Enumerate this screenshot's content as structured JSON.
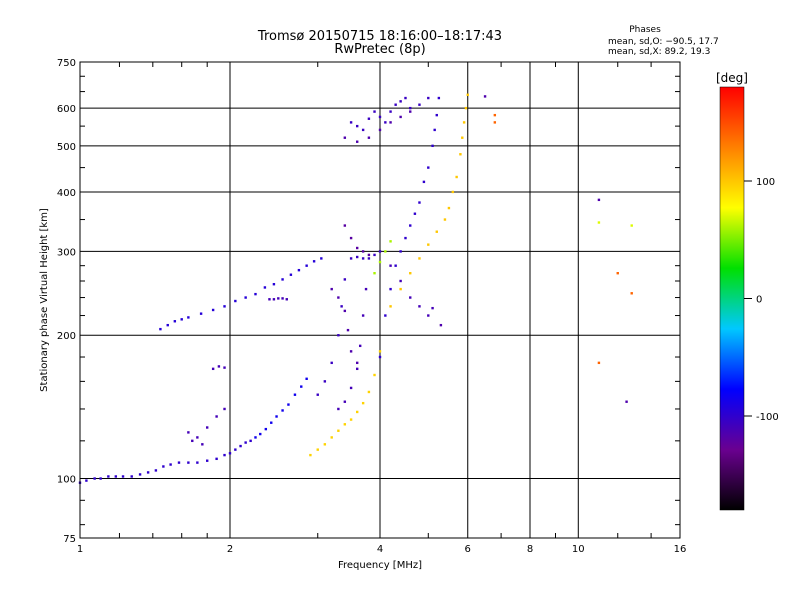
{
  "chart_data": {
    "type": "scatter",
    "title": "Tromsø 20150715 18:16:00–18:17:43",
    "subtitle": "RwPretec (8p)",
    "xlabel": "Frequency [MHz]",
    "ylabel": "Stationary phase Virtual Height [km]",
    "x_scale": "log",
    "y_scale": "log",
    "xlim": [
      1,
      16
    ],
    "ylim": [
      75,
      750
    ],
    "grid": true,
    "x_ticks": [
      1,
      2,
      4,
      6,
      8,
      10,
      16
    ],
    "y_ticks": [
      75,
      100,
      200,
      300,
      400,
      500,
      600,
      750
    ],
    "phases_box": {
      "title": "Phases",
      "line_o": "mean, sd,O: −90.5, 17.7",
      "line_x": "mean, sd,X:  89.2, 19.3"
    },
    "colorbar": {
      "label": "[deg]",
      "range": [
        -180,
        180
      ],
      "ticks": [
        100,
        0,
        -100
      ],
      "colors": [
        "#000000",
        "#6a0090",
        "#0000ff",
        "#00c8ff",
        "#00e000",
        "#ffff00",
        "#ff8000",
        "#ff0000"
      ]
    },
    "series": [
      {
        "phase": -100,
        "points": [
          [
            1.0,
            98
          ],
          [
            1.03,
            99
          ],
          [
            1.07,
            100
          ],
          [
            1.1,
            100
          ],
          [
            1.14,
            101
          ],
          [
            1.18,
            101
          ],
          [
            1.22,
            101
          ],
          [
            1.27,
            101
          ],
          [
            1.32,
            102
          ],
          [
            1.37,
            103
          ],
          [
            1.42,
            104
          ],
          [
            1.47,
            106
          ],
          [
            1.52,
            107
          ],
          [
            1.58,
            108
          ],
          [
            1.65,
            108
          ],
          [
            1.72,
            108
          ],
          [
            1.8,
            109
          ],
          [
            1.88,
            110
          ],
          [
            1.95,
            112
          ],
          [
            2.0,
            113
          ],
          [
            2.05,
            115
          ],
          [
            2.1,
            117
          ],
          [
            2.15,
            119
          ],
          [
            2.2,
            120
          ]
        ]
      },
      {
        "phase": -85,
        "points": [
          [
            2.25,
            122
          ],
          [
            2.3,
            124
          ],
          [
            2.36,
            127
          ],
          [
            2.42,
            131
          ],
          [
            2.48,
            135
          ],
          [
            2.55,
            139
          ],
          [
            2.62,
            143
          ],
          [
            2.7,
            150
          ],
          [
            2.78,
            156
          ],
          [
            2.85,
            162
          ]
        ]
      },
      {
        "phase": -95,
        "points": [
          [
            1.45,
            206
          ],
          [
            1.5,
            210
          ],
          [
            1.55,
            214
          ],
          [
            1.6,
            216
          ],
          [
            1.65,
            218
          ],
          [
            1.75,
            222
          ],
          [
            1.85,
            226
          ],
          [
            1.95,
            230
          ],
          [
            2.05,
            236
          ],
          [
            2.15,
            240
          ],
          [
            2.25,
            244
          ],
          [
            2.35,
            252
          ],
          [
            2.45,
            256
          ],
          [
            2.55,
            262
          ],
          [
            2.65,
            268
          ],
          [
            2.75,
            274
          ],
          [
            2.85,
            280
          ],
          [
            2.95,
            286
          ],
          [
            3.05,
            290
          ]
        ]
      },
      {
        "phase": -110,
        "points": [
          [
            2.4,
            238
          ],
          [
            2.45,
            238
          ],
          [
            2.5,
            239
          ],
          [
            2.55,
            239
          ],
          [
            2.6,
            238
          ]
        ]
      },
      {
        "phase": -110,
        "points": [
          [
            1.85,
            170
          ],
          [
            1.9,
            172
          ],
          [
            1.95,
            171
          ]
        ]
      },
      {
        "phase": -110,
        "points": [
          [
            1.65,
            125
          ],
          [
            1.72,
            122
          ],
          [
            1.8,
            128
          ],
          [
            1.88,
            135
          ],
          [
            1.95,
            140
          ],
          [
            1.68,
            120
          ],
          [
            1.76,
            118
          ]
        ]
      },
      {
        "phase": -105,
        "points": [
          [
            3.0,
            150
          ],
          [
            3.1,
            160
          ],
          [
            3.2,
            175
          ],
          [
            3.3,
            200
          ],
          [
            3.35,
            230
          ],
          [
            3.4,
            262
          ],
          [
            3.5,
            290
          ],
          [
            3.6,
            292
          ],
          [
            3.7,
            290
          ],
          [
            3.8,
            290
          ],
          [
            3.9,
            295
          ],
          [
            4.0,
            300
          ]
        ]
      },
      {
        "phase": -110,
        "points": [
          [
            3.3,
            140
          ],
          [
            3.4,
            145
          ],
          [
            3.5,
            155
          ],
          [
            3.6,
            170
          ],
          [
            3.65,
            190
          ],
          [
            3.7,
            220
          ],
          [
            3.75,
            250
          ]
        ]
      },
      {
        "phase": -115,
        "points": [
          [
            3.2,
            250
          ],
          [
            3.3,
            240
          ],
          [
            3.4,
            225
          ],
          [
            3.45,
            205
          ],
          [
            3.5,
            185
          ],
          [
            3.6,
            175
          ]
        ]
      },
      {
        "phase": -105,
        "points": [
          [
            3.5,
            560
          ],
          [
            3.6,
            550
          ],
          [
            3.7,
            540
          ],
          [
            3.8,
            570
          ],
          [
            3.9,
            590
          ],
          [
            4.0,
            575
          ],
          [
            4.1,
            560
          ],
          [
            4.2,
            590
          ],
          [
            4.3,
            610
          ],
          [
            4.4,
            620
          ],
          [
            4.5,
            630
          ],
          [
            4.6,
            600
          ],
          [
            4.8,
            610
          ],
          [
            5.0,
            630
          ]
        ]
      },
      {
        "phase": -115,
        "points": [
          [
            3.4,
            520
          ],
          [
            3.6,
            510
          ],
          [
            3.8,
            520
          ],
          [
            4.0,
            540
          ],
          [
            4.2,
            560
          ],
          [
            4.4,
            575
          ],
          [
            4.6,
            590
          ]
        ]
      },
      {
        "phase": -100,
        "points": [
          [
            4.0,
            180
          ],
          [
            4.1,
            220
          ],
          [
            4.2,
            250
          ],
          [
            4.3,
            280
          ],
          [
            4.4,
            300
          ],
          [
            4.5,
            320
          ],
          [
            4.6,
            340
          ],
          [
            4.7,
            360
          ],
          [
            4.8,
            380
          ],
          [
            4.9,
            420
          ],
          [
            5.0,
            450
          ],
          [
            5.1,
            500
          ],
          [
            5.15,
            540
          ],
          [
            5.2,
            580
          ],
          [
            5.25,
            630
          ]
        ]
      },
      {
        "phase": -110,
        "points": [
          [
            4.2,
            280
          ],
          [
            4.4,
            260
          ],
          [
            4.6,
            240
          ],
          [
            4.8,
            230
          ],
          [
            5.0,
            220
          ],
          [
            5.1,
            228
          ]
        ]
      },
      {
        "phase": -120,
        "points": [
          [
            3.4,
            340
          ],
          [
            3.5,
            320
          ],
          [
            3.6,
            305
          ],
          [
            3.7,
            300
          ],
          [
            3.8,
            295
          ]
        ]
      },
      {
        "phase": 95,
        "points": [
          [
            2.9,
            112
          ],
          [
            3.0,
            115
          ],
          [
            3.1,
            118
          ],
          [
            3.2,
            122
          ],
          [
            3.3,
            126
          ],
          [
            3.4,
            130
          ],
          [
            3.5,
            133
          ],
          [
            3.6,
            138
          ],
          [
            3.7,
            144
          ],
          [
            3.8,
            152
          ],
          [
            3.9,
            165
          ],
          [
            4.0,
            185
          ]
        ]
      },
      {
        "phase": 100,
        "points": [
          [
            4.2,
            230
          ],
          [
            4.4,
            250
          ],
          [
            4.6,
            270
          ],
          [
            4.8,
            290
          ],
          [
            5.0,
            310
          ],
          [
            5.2,
            330
          ],
          [
            5.4,
            350
          ],
          [
            5.5,
            370
          ],
          [
            5.6,
            400
          ],
          [
            5.7,
            430
          ],
          [
            5.8,
            480
          ],
          [
            5.85,
            520
          ],
          [
            5.9,
            560
          ],
          [
            5.95,
            600
          ],
          [
            6.0,
            640
          ]
        ]
      },
      {
        "phase": 60,
        "points": [
          [
            3.9,
            270
          ],
          [
            4.0,
            285
          ],
          [
            4.1,
            300
          ],
          [
            4.2,
            315
          ]
        ]
      },
      {
        "phase": 140,
        "points": [
          [
            6.8,
            560
          ],
          [
            6.8,
            580
          ],
          [
            12.0,
            270
          ],
          [
            12.8,
            245
          ],
          [
            11.0,
            175
          ]
        ]
      },
      {
        "phase": 70,
        "points": [
          [
            11.0,
            345
          ],
          [
            12.8,
            340
          ]
        ]
      },
      {
        "phase": -115,
        "points": [
          [
            6.5,
            635
          ],
          [
            11.0,
            385
          ],
          [
            12.5,
            145
          ],
          [
            5.3,
            210
          ]
        ]
      }
    ]
  }
}
